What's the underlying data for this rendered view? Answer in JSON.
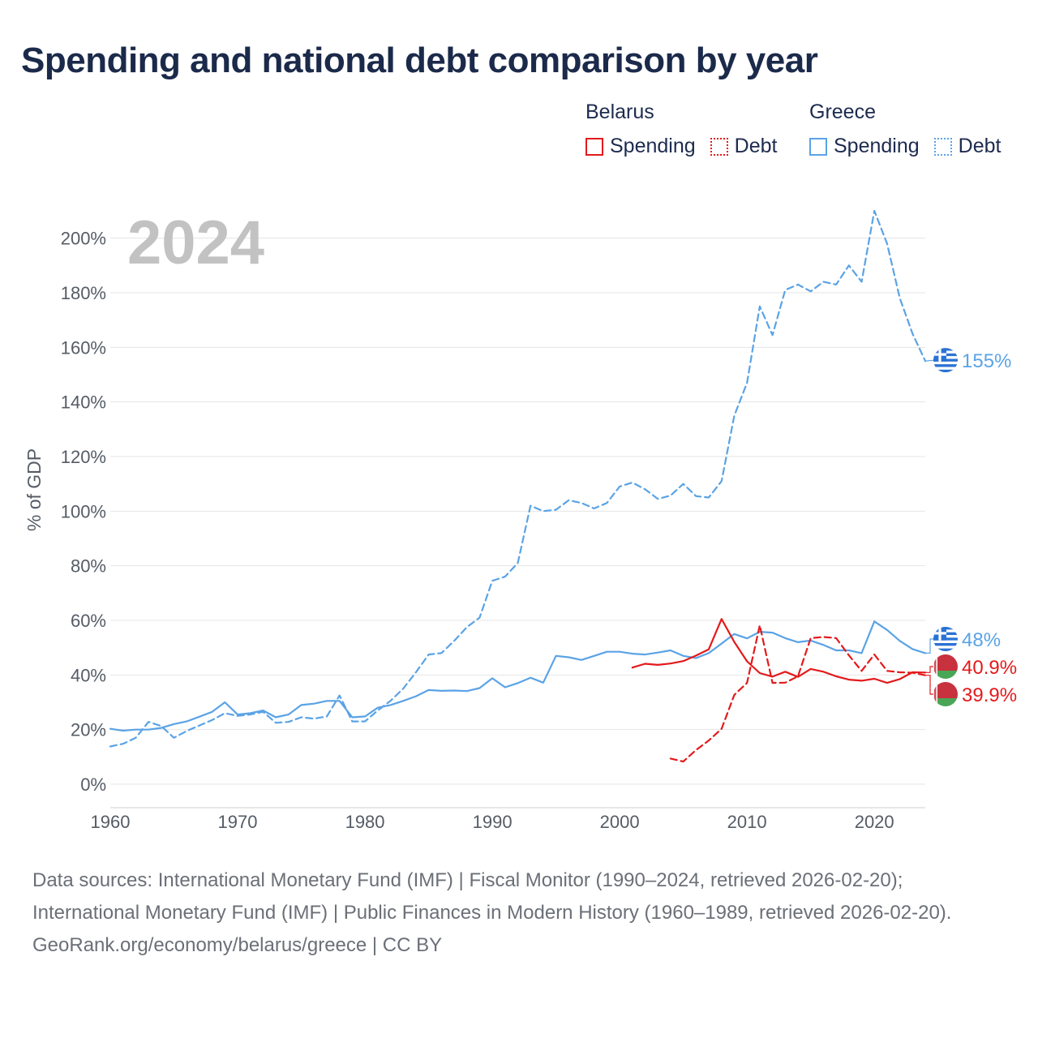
{
  "title": "Spending and national debt comparison by year",
  "legend": {
    "groups": [
      {
        "country": "Belarus",
        "color": "#e31a1c",
        "items": [
          {
            "label": "Spending",
            "style": "solid"
          },
          {
            "label": "Debt",
            "style": "dotted"
          }
        ]
      },
      {
        "country": "Greece",
        "color": "#5aa3e6",
        "items": [
          {
            "label": "Spending",
            "style": "solid"
          },
          {
            "label": "Debt",
            "style": "dotted"
          }
        ]
      }
    ]
  },
  "year_label": "2024",
  "footer": {
    "sources": "Data sources: International Monetary Fund (IMF) | Fiscal Monitor (1990–2024, retrieved 2026-02-20); International Monetary Fund (IMF) | Public Finances in Modern History (1960–1989, retrieved 2026-02-20).",
    "credit": "GeoRank.org/economy/belarus/greece | CC BY"
  },
  "chart_data": {
    "type": "line",
    "title": "Spending and national debt comparison by year",
    "xlabel": "",
    "ylabel": "% of GDP",
    "xlim": [
      1960,
      2024
    ],
    "ylim": [
      0,
      210
    ],
    "x_ticks": [
      1960,
      1970,
      1980,
      1990,
      2000,
      2010,
      2020
    ],
    "y_ticks": [
      0,
      20,
      40,
      60,
      80,
      100,
      120,
      140,
      160,
      180,
      200
    ],
    "y_tick_labels": [
      "0%",
      "20%",
      "40%",
      "60%",
      "80%",
      "100%",
      "120%",
      "140%",
      "160%",
      "180%",
      "200%"
    ],
    "grid": true,
    "legend_position": "top-right",
    "series": [
      {
        "name": "Greece Debt",
        "country": "Greece",
        "metric": "Debt",
        "color": "#5aa3e6",
        "dash": "dashed",
        "end_label": "155%",
        "x": [
          1960,
          1961,
          1962,
          1963,
          1964,
          1965,
          1966,
          1967,
          1968,
          1969,
          1970,
          1971,
          1972,
          1973,
          1974,
          1975,
          1976,
          1977,
          1978,
          1979,
          1980,
          1981,
          1982,
          1983,
          1984,
          1985,
          1986,
          1987,
          1988,
          1989,
          1990,
          1991,
          1992,
          1993,
          1994,
          1995,
          1996,
          1997,
          1998,
          1999,
          2000,
          2001,
          2002,
          2003,
          2004,
          2005,
          2006,
          2007,
          2008,
          2009,
          2010,
          2011,
          2012,
          2013,
          2014,
          2015,
          2016,
          2017,
          2018,
          2019,
          2020,
          2021,
          2022,
          2023,
          2024
        ],
        "y": [
          13.8,
          14.8,
          17,
          22.8,
          21.3,
          17,
          19.5,
          21.5,
          23.5,
          26,
          25,
          25.5,
          26.5,
          22.5,
          22.8,
          24.5,
          24,
          24.8,
          32.5,
          23,
          23,
          27,
          30.5,
          35,
          41,
          47.5,
          48,
          52.5,
          57.5,
          61,
          74.5,
          76,
          81,
          102,
          100,
          100.5,
          104,
          103,
          101,
          103,
          109,
          110.5,
          108,
          104.5,
          105.7,
          110,
          105.5,
          105,
          111,
          135,
          147,
          175,
          164.5,
          181,
          183,
          180.5,
          184,
          183,
          190,
          184,
          210,
          198,
          178,
          165,
          155
        ]
      },
      {
        "name": "Greece Spending",
        "country": "Greece",
        "metric": "Spending",
        "color": "#5aa3e6",
        "dash": "solid",
        "end_label": "48%",
        "x": [
          1960,
          1961,
          1962,
          1963,
          1964,
          1965,
          1966,
          1967,
          1968,
          1969,
          1970,
          1971,
          1972,
          1973,
          1974,
          1975,
          1976,
          1977,
          1978,
          1979,
          1980,
          1981,
          1982,
          1983,
          1984,
          1985,
          1986,
          1987,
          1988,
          1989,
          1990,
          1991,
          1992,
          1993,
          1994,
          1995,
          1996,
          1997,
          1998,
          1999,
          2000,
          2001,
          2002,
          2003,
          2004,
          2005,
          2006,
          2007,
          2008,
          2009,
          2010,
          2011,
          2012,
          2013,
          2014,
          2015,
          2016,
          2017,
          2018,
          2019,
          2020,
          2021,
          2022,
          2023,
          2024
        ],
        "y": [
          20.3,
          19.6,
          20,
          20,
          20.6,
          22,
          23,
          24.7,
          26.5,
          30,
          25.5,
          26,
          27,
          24.5,
          25.5,
          29,
          29.5,
          30.5,
          30.5,
          24.5,
          24.8,
          28,
          29,
          30.5,
          32.2,
          34.5,
          34.2,
          34.3,
          34.1,
          35.2,
          38.8,
          35.5,
          37,
          39,
          37.2,
          47,
          46.5,
          45.5,
          47,
          48.5,
          48.5,
          47.8,
          47.5,
          48.2,
          49,
          47,
          46.2,
          48,
          51.5,
          55,
          53.4,
          55.8,
          55.5,
          53.5,
          52,
          52.6,
          51,
          49,
          49,
          48,
          59.6,
          56.5,
          52.5,
          49.5,
          48
        ]
      },
      {
        "name": "Belarus Spending",
        "country": "Belarus",
        "metric": "Spending",
        "color": "#e31a1c",
        "dash": "solid",
        "end_label": "40.9%",
        "x": [
          2001,
          2002,
          2003,
          2004,
          2005,
          2006,
          2007,
          2008,
          2009,
          2010,
          2011,
          2012,
          2013,
          2014,
          2015,
          2016,
          2017,
          2018,
          2019,
          2020,
          2021,
          2022,
          2023,
          2024
        ],
        "y": [
          42.7,
          44.1,
          43.7,
          44.2,
          45.1,
          47.1,
          49.4,
          60.5,
          52.1,
          45,
          40.7,
          39.4,
          41.2,
          39.3,
          42.2,
          41.2,
          39.5,
          38.3,
          37.9,
          38.6,
          37.1,
          38.5,
          41,
          40.9
        ]
      },
      {
        "name": "Belarus Debt",
        "country": "Belarus",
        "metric": "Debt",
        "color": "#e31a1c",
        "dash": "dashed",
        "end_label": "39.9%",
        "x": [
          2004,
          2005,
          2006,
          2007,
          2008,
          2009,
          2010,
          2011,
          2012,
          2013,
          2014,
          2015,
          2016,
          2017,
          2018,
          2019,
          2020,
          2021,
          2022,
          2023,
          2024
        ],
        "y": [
          9.4,
          8.3,
          12.5,
          16,
          20.3,
          32.7,
          37.1,
          58.2,
          37.1,
          37.2,
          39.5,
          53.5,
          53.9,
          53.5,
          47.2,
          41.5,
          47.5,
          41.5,
          41,
          40.8,
          39.9
        ]
      }
    ]
  }
}
